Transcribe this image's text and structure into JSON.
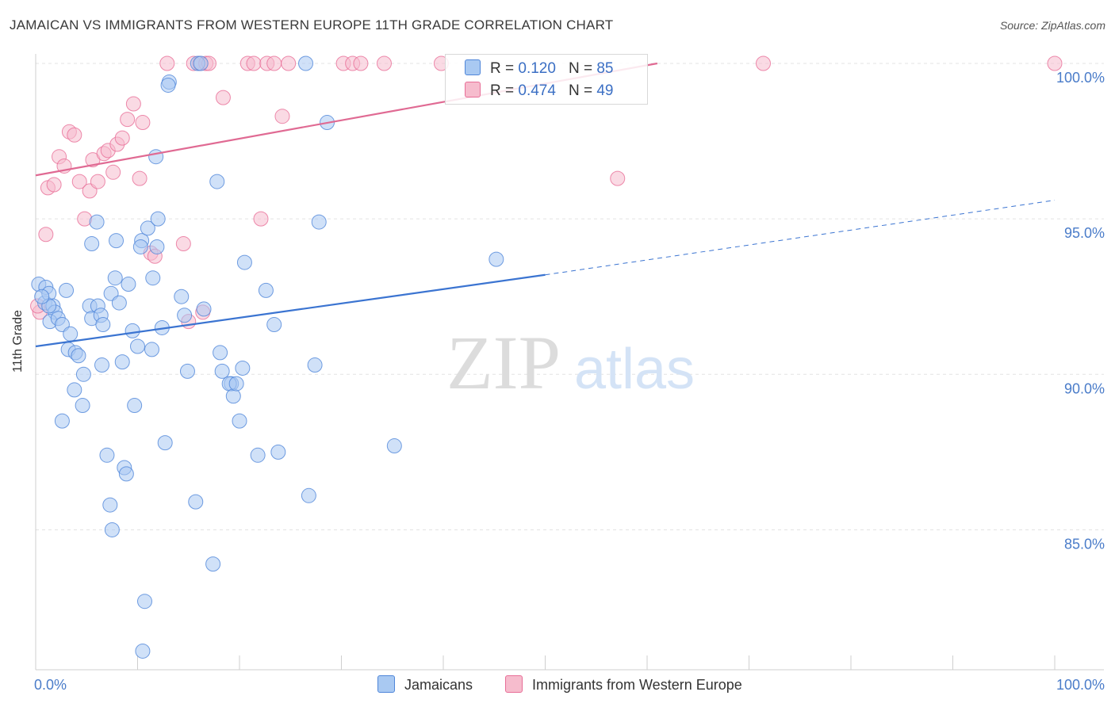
{
  "title": "JAMAICAN VS IMMIGRANTS FROM WESTERN EUROPE 11TH GRADE CORRELATION CHART",
  "source": "Source: ZipAtlas.com",
  "watermark": {
    "zip": "ZIP",
    "atlas": "atlas"
  },
  "legend": {
    "rows": [
      {
        "r_label": "R =",
        "r_value": "0.120",
        "n_label": "N =",
        "n_value": "85",
        "color": "#a9c9f2"
      },
      {
        "r_label": "R =",
        "r_value": "0.474",
        "n_label": "N =",
        "n_value": "49",
        "color": "#f6bccd"
      }
    ]
  },
  "bottom_legend": [
    {
      "label": "Jamaicans",
      "color": "#a9c9f2"
    },
    {
      "label": "Immigrants from Western Europe",
      "color": "#f6bccd"
    }
  ],
  "chart_data": {
    "type": "scatter",
    "title": "JAMAICAN VS IMMIGRANTS FROM WESTERN EUROPE 11TH GRADE CORRELATION CHART",
    "xlabel": "",
    "ylabel": "11th Grade",
    "xlim": [
      0,
      100
    ],
    "ylim": [
      80.5,
      100.5
    ],
    "x_tick_labels": [
      "0.0%",
      "100.0%"
    ],
    "y_ticks": [
      {
        "value": 85,
        "label": "85.0%"
      },
      {
        "value": 90,
        "label": "90.0%"
      },
      {
        "value": 95,
        "label": "95.0%"
      },
      {
        "value": 100,
        "label": "100.0%"
      }
    ],
    "grid": true,
    "series": [
      {
        "name": "Jamaicans",
        "color": "#4f86d9",
        "fill": "#a9c9f2",
        "trend": {
          "x0": 0,
          "y0": 90.9,
          "x1": 50,
          "y1": 93.2,
          "dashed_to_x": 100,
          "dashed_to_y": 95.6
        },
        "points": [
          [
            0.3,
            92.9
          ],
          [
            1.0,
            92.8
          ],
          [
            0.9,
            92.3
          ],
          [
            1.3,
            92.6
          ],
          [
            1.7,
            92.2
          ],
          [
            1.9,
            92.0
          ],
          [
            1.4,
            91.7
          ],
          [
            2.2,
            91.8
          ],
          [
            2.6,
            91.6
          ],
          [
            3.0,
            92.7
          ],
          [
            3.4,
            91.3
          ],
          [
            3.2,
            90.8
          ],
          [
            3.9,
            90.7
          ],
          [
            4.2,
            90.6
          ],
          [
            4.7,
            90.0
          ],
          [
            3.8,
            89.5
          ],
          [
            4.6,
            89.0
          ],
          [
            2.6,
            88.5
          ],
          [
            5.3,
            92.2
          ],
          [
            5.5,
            91.8
          ],
          [
            6.1,
            92.2
          ],
          [
            6.4,
            91.9
          ],
          [
            6.6,
            91.6
          ],
          [
            5.5,
            94.2
          ],
          [
            6.0,
            94.9
          ],
          [
            6.5,
            90.3
          ],
          [
            7.0,
            87.4
          ],
          [
            7.3,
            85.8
          ],
          [
            7.5,
            85.0
          ],
          [
            7.4,
            92.6
          ],
          [
            7.8,
            93.1
          ],
          [
            7.9,
            94.3
          ],
          [
            8.2,
            92.3
          ],
          [
            8.5,
            90.4
          ],
          [
            8.7,
            87.0
          ],
          [
            8.9,
            86.8
          ],
          [
            9.1,
            92.9
          ],
          [
            9.5,
            91.4
          ],
          [
            9.7,
            89.0
          ],
          [
            10.0,
            90.9
          ],
          [
            10.4,
            94.3
          ],
          [
            10.3,
            94.1
          ],
          [
            10.7,
            82.7
          ],
          [
            10.5,
            81.1
          ],
          [
            11.0,
            94.7
          ],
          [
            11.4,
            90.8
          ],
          [
            11.5,
            93.1
          ],
          [
            11.8,
            97.0
          ],
          [
            12.0,
            95.0
          ],
          [
            12.4,
            91.5
          ],
          [
            12.7,
            87.8
          ],
          [
            13.1,
            99.4
          ],
          [
            13.0,
            99.3
          ],
          [
            14.3,
            92.5
          ],
          [
            14.6,
            91.9
          ],
          [
            14.9,
            90.1
          ],
          [
            15.7,
            85.9
          ],
          [
            15.9,
            100.0
          ],
          [
            16.2,
            100.0
          ],
          [
            16.5,
            92.1
          ],
          [
            17.4,
            83.9
          ],
          [
            17.8,
            96.2
          ],
          [
            18.1,
            90.7
          ],
          [
            18.3,
            90.1
          ],
          [
            19.2,
            89.7
          ],
          [
            19.0,
            89.7
          ],
          [
            19.4,
            89.3
          ],
          [
            19.7,
            89.7
          ],
          [
            20.0,
            88.5
          ],
          [
            20.3,
            90.2
          ],
          [
            20.5,
            93.6
          ],
          [
            21.8,
            87.4
          ],
          [
            22.6,
            92.7
          ],
          [
            23.4,
            91.6
          ],
          [
            23.8,
            87.5
          ],
          [
            26.5,
            100.0
          ],
          [
            26.8,
            86.1
          ],
          [
            27.4,
            90.3
          ],
          [
            27.8,
            94.9
          ],
          [
            28.6,
            98.1
          ],
          [
            35.2,
            87.7
          ],
          [
            45.2,
            93.7
          ],
          [
            1.3,
            92.2
          ],
          [
            0.6,
            92.5
          ],
          [
            11.9,
            94.1
          ]
        ]
      },
      {
        "name": "Immigrants from Western Europe",
        "color": "#e86e97",
        "fill": "#f6bccd",
        "trend": {
          "x0": 0,
          "y0": 96.4,
          "x1": 61,
          "y1": 100.0
        },
        "points": [
          [
            0.4,
            92.0
          ],
          [
            0.2,
            92.2
          ],
          [
            1.0,
            94.5
          ],
          [
            1.2,
            96.0
          ],
          [
            1.8,
            96.1
          ],
          [
            2.3,
            97.0
          ],
          [
            2.8,
            96.7
          ],
          [
            3.3,
            97.8
          ],
          [
            3.8,
            97.7
          ],
          [
            4.3,
            96.2
          ],
          [
            4.8,
            95.0
          ],
          [
            5.3,
            95.9
          ],
          [
            5.6,
            96.9
          ],
          [
            6.1,
            96.2
          ],
          [
            6.7,
            97.1
          ],
          [
            7.1,
            97.2
          ],
          [
            7.6,
            96.5
          ],
          [
            8.0,
            97.4
          ],
          [
            8.5,
            97.6
          ],
          [
            9.0,
            98.2
          ],
          [
            9.6,
            98.7
          ],
          [
            10.2,
            96.3
          ],
          [
            10.5,
            98.1
          ],
          [
            11.3,
            93.9
          ],
          [
            11.7,
            93.8
          ],
          [
            12.9,
            100.0
          ],
          [
            14.5,
            94.2
          ],
          [
            15.0,
            91.7
          ],
          [
            15.5,
            100.0
          ],
          [
            16.1,
            100.0
          ],
          [
            16.7,
            100.0
          ],
          [
            16.4,
            92.0
          ],
          [
            17.0,
            100.0
          ],
          [
            18.4,
            98.9
          ],
          [
            20.8,
            100.0
          ],
          [
            21.4,
            100.0
          ],
          [
            22.1,
            95.0
          ],
          [
            22.7,
            100.0
          ],
          [
            23.4,
            100.0
          ],
          [
            24.2,
            98.3
          ],
          [
            24.8,
            100.0
          ],
          [
            30.2,
            100.0
          ],
          [
            31.1,
            100.0
          ],
          [
            31.9,
            100.0
          ],
          [
            34.2,
            100.0
          ],
          [
            39.8,
            100.0
          ],
          [
            57.1,
            96.3
          ],
          [
            71.4,
            100.0
          ],
          [
            100.0,
            100.0
          ]
        ]
      }
    ]
  }
}
